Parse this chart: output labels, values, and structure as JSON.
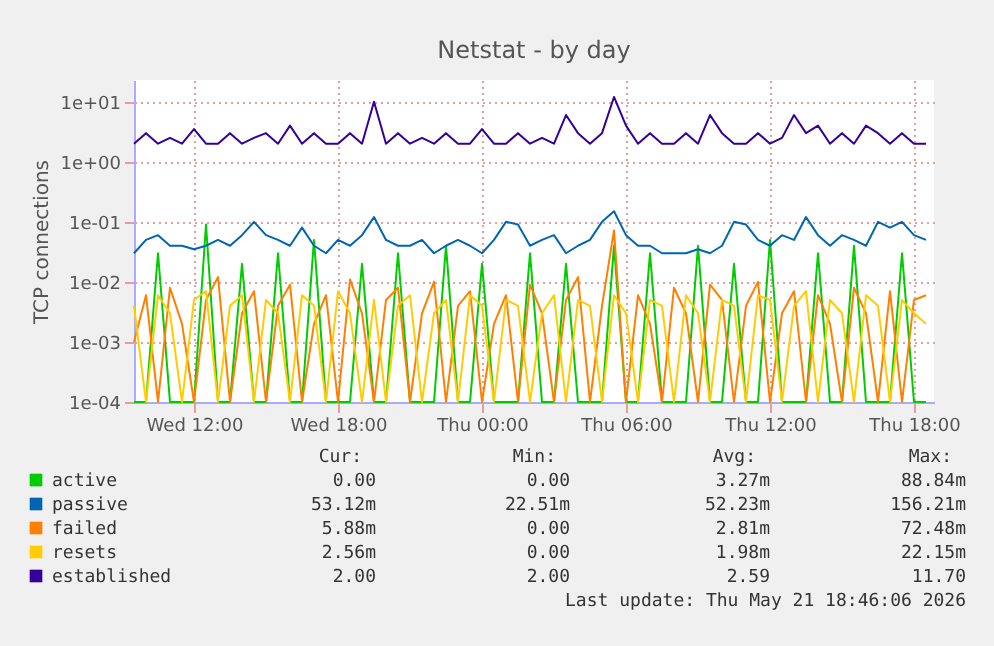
{
  "chart_data": {
    "type": "line",
    "title": "Netstat - by day",
    "ylabel": "TCP connections",
    "log": true,
    "grid": true,
    "legend": "bottom",
    "line_style": "solid",
    "marker": "none",
    "xlim": [
      "2026-05-20T09:30",
      "2026-05-21T18:50"
    ],
    "xticks": [
      {
        "value": "2026-05-20T12:00",
        "label": "Wed 12:00"
      },
      {
        "value": "2026-05-20T18:00",
        "label": "Wed 18:00"
      },
      {
        "value": "2026-05-21T00:00",
        "label": "Thu 00:00"
      },
      {
        "value": "2026-05-21T06:00",
        "label": "Thu 06:00"
      },
      {
        "value": "2026-05-21T12:00",
        "label": "Thu 12:00"
      },
      {
        "value": "2026-05-21T18:00",
        "label": "Thu 18:00"
      }
    ],
    "ylim": [
      0.0001,
      23
    ],
    "yticks": [
      {
        "value": 0.0001,
        "label": "1e-04"
      },
      {
        "value": 0.001,
        "label": "1e-03"
      },
      {
        "value": 0.01,
        "label": "1e-02"
      },
      {
        "value": 0.1,
        "label": "1e-01"
      },
      {
        "value": 1,
        "label": "1e+00"
      },
      {
        "value": 10,
        "label": "1e+01"
      }
    ],
    "x": [
      "2026-05-20T09:30",
      "2026-05-20T10:00",
      "2026-05-20T10:30",
      "2026-05-20T11:00",
      "2026-05-20T11:30",
      "2026-05-20T12:00",
      "2026-05-20T12:30",
      "2026-05-20T13:00",
      "2026-05-20T13:30",
      "2026-05-20T14:00",
      "2026-05-20T14:30",
      "2026-05-20T15:00",
      "2026-05-20T15:30",
      "2026-05-20T16:00",
      "2026-05-20T16:30",
      "2026-05-20T17:00",
      "2026-05-20T17:30",
      "2026-05-20T18:00",
      "2026-05-20T18:30",
      "2026-05-20T19:00",
      "2026-05-20T19:30",
      "2026-05-20T20:00",
      "2026-05-20T20:30",
      "2026-05-20T21:00",
      "2026-05-20T21:30",
      "2026-05-20T22:00",
      "2026-05-20T22:30",
      "2026-05-20T23:00",
      "2026-05-20T23:30",
      "2026-05-21T00:00",
      "2026-05-21T00:30",
      "2026-05-21T01:00",
      "2026-05-21T01:30",
      "2026-05-21T02:00",
      "2026-05-21T02:30",
      "2026-05-21T03:00",
      "2026-05-21T03:30",
      "2026-05-21T04:00",
      "2026-05-21T04:30",
      "2026-05-21T05:00",
      "2026-05-21T05:30",
      "2026-05-21T06:00",
      "2026-05-21T06:30",
      "2026-05-21T07:00",
      "2026-05-21T07:30",
      "2026-05-21T08:00",
      "2026-05-21T08:30",
      "2026-05-21T09:00",
      "2026-05-21T09:30",
      "2026-05-21T10:00",
      "2026-05-21T10:30",
      "2026-05-21T11:00",
      "2026-05-21T11:30",
      "2026-05-21T12:00",
      "2026-05-21T12:30",
      "2026-05-21T13:00",
      "2026-05-21T13:30",
      "2026-05-21T14:00",
      "2026-05-21T14:30",
      "2026-05-21T15:00",
      "2026-05-21T15:30",
      "2026-05-21T16:00",
      "2026-05-21T16:30",
      "2026-05-21T17:00",
      "2026-05-21T17:30",
      "2026-05-21T18:00",
      "2026-05-21T18:30"
    ],
    "series": [
      {
        "name": "active",
        "color": "#00cc00",
        "values": [
          0.0001,
          0.0001,
          0.03,
          0.0001,
          0.0001,
          0.0001,
          0.09,
          0.0001,
          0.0001,
          0.02,
          0.0001,
          0.0001,
          0.03,
          0.0001,
          0.0001,
          0.05,
          0.0001,
          0.0001,
          0.0001,
          0.02,
          0.0001,
          0.0001,
          0.03,
          0.0001,
          0.0001,
          0.0001,
          0.04,
          0.0001,
          0.0001,
          0.02,
          0.0001,
          0.0001,
          0.0001,
          0.03,
          0.0001,
          0.0001,
          0.02,
          0.0001,
          0.0001,
          0.0001,
          0.04,
          0.0001,
          0.0001,
          0.03,
          0.0001,
          0.0001,
          0.0001,
          0.04,
          0.0001,
          0.0001,
          0.02,
          0.0001,
          0.0001,
          0.05,
          0.0001,
          0.0001,
          0.0001,
          0.03,
          0.0001,
          0.0001,
          0.04,
          0.0001,
          0.0001,
          0.0001,
          0.03,
          0.0001,
          0.0001
        ]
      },
      {
        "name": "passive",
        "color": "#0066b3",
        "values": [
          0.03,
          0.05,
          0.06,
          0.04,
          0.04,
          0.035,
          0.04,
          0.05,
          0.04,
          0.06,
          0.1,
          0.06,
          0.05,
          0.04,
          0.08,
          0.04,
          0.03,
          0.05,
          0.04,
          0.06,
          0.12,
          0.05,
          0.04,
          0.04,
          0.05,
          0.03,
          0.04,
          0.05,
          0.04,
          0.03,
          0.05,
          0.1,
          0.09,
          0.04,
          0.05,
          0.06,
          0.03,
          0.04,
          0.05,
          0.1,
          0.15,
          0.06,
          0.04,
          0.04,
          0.03,
          0.03,
          0.03,
          0.035,
          0.03,
          0.04,
          0.1,
          0.09,
          0.05,
          0.04,
          0.06,
          0.05,
          0.12,
          0.06,
          0.04,
          0.06,
          0.05,
          0.04,
          0.1,
          0.08,
          0.1,
          0.06,
          0.05
        ]
      },
      {
        "name": "failed",
        "color": "#ff8000",
        "values": [
          0.001,
          0.006,
          0.0001,
          0.008,
          0.002,
          0.0001,
          0.005,
          0.012,
          0.0001,
          0.003,
          0.007,
          0.0001,
          0.004,
          0.009,
          0.0001,
          0.002,
          0.006,
          0.0001,
          0.011,
          0.003,
          0.0001,
          0.005,
          0.008,
          0.0001,
          0.003,
          0.01,
          0.0001,
          0.004,
          0.007,
          0.0001,
          0.002,
          0.006,
          0.0001,
          0.009,
          0.003,
          0.0001,
          0.005,
          0.012,
          0.0001,
          0.004,
          0.072,
          0.0001,
          0.006,
          0.002,
          0.0001,
          0.008,
          0.003,
          0.0001,
          0.009,
          0.005,
          0.0001,
          0.004,
          0.01,
          0.0001,
          0.003,
          0.007,
          0.0001,
          0.006,
          0.002,
          0.0001,
          0.008,
          0.003,
          0.0001,
          0.007,
          0.0001,
          0.005,
          0.006
        ]
      },
      {
        "name": "resets",
        "color": "#ffcc00",
        "values": [
          0.004,
          0.0001,
          0.006,
          0.003,
          0.0001,
          0.005,
          0.007,
          0.0001,
          0.004,
          0.006,
          0.0001,
          0.005,
          0.003,
          0.0001,
          0.006,
          0.004,
          0.0001,
          0.007,
          0.003,
          0.0001,
          0.005,
          0.0001,
          0.004,
          0.006,
          0.0001,
          0.003,
          0.005,
          0.0001,
          0.006,
          0.004,
          0.0001,
          0.005,
          0.004,
          0.0001,
          0.003,
          0.006,
          0.0001,
          0.005,
          0.004,
          0.0001,
          0.006,
          0.003,
          0.0001,
          0.005,
          0.004,
          0.0001,
          0.006,
          0.003,
          0.0001,
          0.005,
          0.004,
          0.0001,
          0.006,
          0.005,
          0.0001,
          0.004,
          0.007,
          0.0001,
          0.005,
          0.003,
          0.0001,
          0.006,
          0.004,
          0.0001,
          0.005,
          0.003,
          0.002
        ]
      },
      {
        "name": "established",
        "color": "#330099",
        "values": [
          2,
          3,
          2,
          2.5,
          2,
          3.5,
          2,
          2,
          3,
          2,
          2.5,
          3,
          2,
          4,
          2,
          3,
          2,
          2,
          3,
          2,
          10,
          2,
          3,
          2,
          2.5,
          2,
          3,
          2,
          2,
          3.5,
          2,
          2,
          3,
          2,
          2.5,
          2,
          6,
          3,
          2,
          3,
          12,
          4,
          2,
          3,
          2,
          2,
          3,
          2,
          6,
          3,
          2,
          2,
          3,
          2,
          2.5,
          6,
          3,
          4,
          2,
          3,
          2,
          4,
          3,
          2,
          3,
          2,
          2
        ]
      }
    ],
    "annotations": [
      "Cur:",
      "Min:",
      "Avg:",
      "Max:",
      "0.00",
      "0.00",
      "3.27m",
      "88.84m",
      "53.12m",
      "22.51m",
      "52.23m",
      "156.21m",
      "5.88m",
      "0.00",
      "2.81m",
      "72.48m",
      "2.56m",
      "0.00",
      "1.98m",
      "22.15m",
      "2.00",
      "2.00",
      "2.59",
      "11.70",
      "Last update: Thu May 21 18:46:06 2026"
    ]
  }
}
